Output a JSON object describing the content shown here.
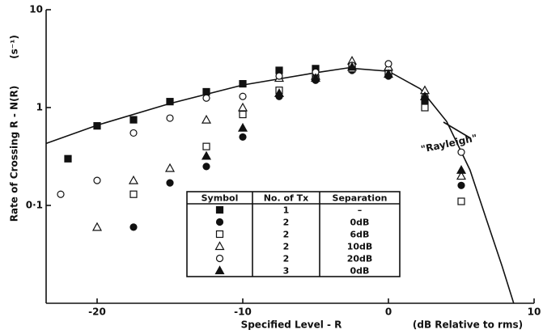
{
  "chart_data": {
    "type": "scatter",
    "ylabel": "Rate of Crossing R - N(R)",
    "yunit": "(s⁻¹)",
    "xlabel": "Specified Level - R",
    "xunit": "(dB Relative to rms)",
    "annotation": "\"Rayleigh\"",
    "xlim": [
      -23.5,
      10
    ],
    "xticks": [
      -20,
      -10,
      0,
      10
    ],
    "ylim": [
      0.01,
      10
    ],
    "yticks": [
      10,
      1,
      {
        "value": 0.1,
        "label": "0·1"
      }
    ],
    "log_y": true,
    "color": "#111111",
    "legend_headers": [
      "Symbol",
      "No. of Tx",
      "Separation"
    ],
    "curve": {
      "x": [
        -23.5,
        -20,
        -15,
        -10,
        -5,
        -2.8,
        0,
        2.2,
        4,
        5.6,
        6.7,
        7.8,
        8.6
      ],
      "values": [
        0.43,
        0.66,
        1.1,
        1.7,
        2.27,
        2.54,
        2.35,
        1.55,
        0.72,
        0.23,
        0.074,
        0.024,
        0.01
      ]
    },
    "series": [
      {
        "marker": "filled-square",
        "tx": "1",
        "separation": "–",
        "x": [
          -22,
          -20,
          -17.5,
          -15,
          -12.5,
          -10,
          -7.5,
          -5,
          -2.5,
          0,
          2.5
        ],
        "values": [
          0.3,
          0.65,
          0.75,
          1.15,
          1.45,
          1.75,
          2.4,
          2.5,
          2.6,
          2.3,
          1.2
        ]
      },
      {
        "marker": "filled-circle",
        "tx": "2",
        "separation": "0dB",
        "x": [
          -17.5,
          -15,
          -12.5,
          -10,
          -7.5,
          -5,
          -2.5,
          0,
          2.5,
          5
        ],
        "values": [
          0.06,
          0.17,
          0.25,
          0.5,
          1.3,
          1.9,
          2.4,
          2.1,
          1.1,
          0.16
        ]
      },
      {
        "marker": "open-square",
        "tx": "2",
        "separation": "6dB",
        "x": [
          -17.5,
          -12.5,
          -10,
          -7.5,
          -5,
          -2.5,
          0,
          2.5,
          5
        ],
        "values": [
          0.13,
          0.4,
          0.85,
          1.5,
          2.0,
          2.5,
          2.2,
          1.0,
          0.11
        ]
      },
      {
        "marker": "open-triangle",
        "tx": "2",
        "separation": "10dB",
        "x": [
          -20,
          -17.5,
          -15,
          -12.5,
          -10,
          -7.5,
          -5,
          -2.5,
          0,
          2.5,
          5
        ],
        "values": [
          0.06,
          0.18,
          0.24,
          0.75,
          1.0,
          2.0,
          2.1,
          3.0,
          2.6,
          1.5,
          0.2
        ]
      },
      {
        "marker": "open-circle",
        "tx": "2",
        "separation": "20dB",
        "x": [
          -22.5,
          -20,
          -17.5,
          -15,
          -12.5,
          -10,
          -7.5,
          -5,
          -2.5,
          0,
          2.5,
          5
        ],
        "values": [
          0.13,
          0.18,
          0.55,
          0.78,
          1.25,
          1.3,
          2.1,
          2.3,
          2.7,
          2.8,
          1.3,
          0.35
        ]
      },
      {
        "marker": "filled-triangle",
        "tx": "3",
        "separation": "0dB",
        "x": [
          -12.5,
          -10,
          -7.5,
          -5,
          -2.5,
          0,
          2.5,
          5
        ],
        "values": [
          0.32,
          0.62,
          1.4,
          2.0,
          2.6,
          2.2,
          1.3,
          0.23
        ]
      }
    ]
  }
}
